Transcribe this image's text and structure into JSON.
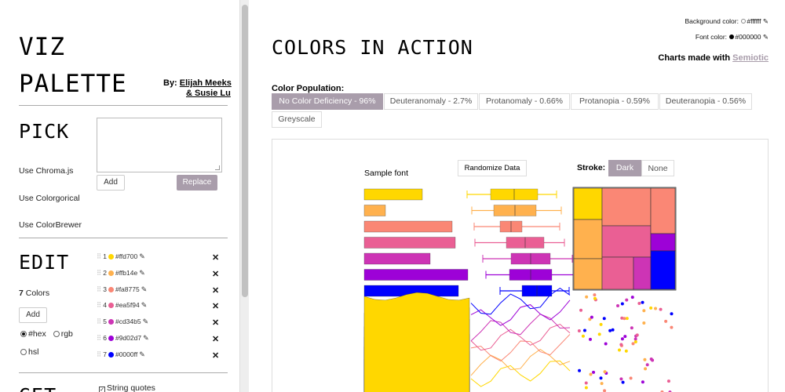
{
  "left": {
    "title_line1": "VIZ",
    "title_line2": "PALETTE",
    "by_prefix": "By: ",
    "author1": "Elijah Meeks",
    "author2": "& Susie Lu",
    "pick_heading": "PICK",
    "palette_textarea_value": "",
    "add_label": "Add",
    "replace_label": "Replace",
    "use_links": [
      "Use Chroma.js",
      "Use Colorgorical",
      "Use ColorBrewer"
    ],
    "edit_heading": "EDIT",
    "colors_count": "7",
    "colors_word": " Colors",
    "add2_label": "Add",
    "radio_hex": "#hex",
    "radio_rgb": "rgb",
    "radio_hsl": "hsl",
    "colors": [
      {
        "index": "1",
        "hex": "#ffd700",
        "label": "#ffd700"
      },
      {
        "index": "2",
        "hex": "#ffb14e",
        "label": "#ffb14e"
      },
      {
        "index": "3",
        "hex": "#fa8775",
        "label": "#fa8775"
      },
      {
        "index": "4",
        "hex": "#ea5f94",
        "label": "#ea5f94"
      },
      {
        "index": "5",
        "hex": "#cd34b5",
        "label": "#cd34b5"
      },
      {
        "index": "6",
        "hex": "#9d02d7",
        "label": "#9d02d7"
      },
      {
        "index": "7",
        "hex": "#0000ff",
        "label": "#0000ff"
      }
    ],
    "get_heading_partial": "GET",
    "string_quotes_label": "String quotes"
  },
  "right": {
    "heading": "COLORS IN ACTION",
    "background_color_label": "Background color:",
    "background_color_value": "#ffffff",
    "font_color_label": "Font color:",
    "font_color_value": "#000000",
    "made_with_prefix": "Charts made with ",
    "made_with_link": "Semiotic",
    "population_label": "Color Population:",
    "tabs": [
      "No Color Deficiency - 96%",
      "Deuteranomaly - 2.7%",
      "Protanomaly - 0.66%",
      "Protanopia - 0.59%",
      "Deuteranopia - 0.56%",
      "Greyscale"
    ],
    "active_tab": "No Color Deficiency - 96%",
    "sample_font": "Sample font",
    "randomize_label": "Randomize Data",
    "stroke_label": "Stroke:",
    "stroke_dark": "Dark",
    "stroke_none": "None",
    "accent_color": "#a99dab"
  }
}
